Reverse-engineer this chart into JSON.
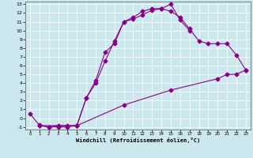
{
  "xlabel": "Windchill (Refroidissement éolien,°C)",
  "bg_color": "#cce8ee",
  "line_color": "#880088",
  "xlim": [
    -0.5,
    23.5
  ],
  "ylim": [
    -1.3,
    13.3
  ],
  "xticks": [
    0,
    1,
    2,
    3,
    4,
    5,
    6,
    7,
    8,
    9,
    10,
    11,
    12,
    13,
    14,
    15,
    16,
    17,
    18,
    19,
    20,
    21,
    22,
    23
  ],
  "yticks": [
    -1,
    0,
    1,
    2,
    3,
    4,
    5,
    6,
    7,
    8,
    9,
    10,
    11,
    12,
    13
  ],
  "line1_x": [
    0,
    1,
    2,
    3,
    4,
    5,
    6,
    7,
    8,
    9,
    10,
    11,
    12,
    13,
    14,
    15,
    16,
    17
  ],
  "line1_y": [
    0.5,
    -0.8,
    -1.0,
    -0.85,
    -0.85,
    -0.85,
    2.3,
    4.0,
    6.5,
    8.8,
    11.0,
    11.5,
    12.2,
    12.5,
    12.5,
    13.0,
    11.2,
    10.0
  ],
  "line2_x": [
    1,
    2,
    3,
    4,
    5,
    6,
    7,
    8,
    9,
    10,
    11,
    12,
    13,
    14,
    15,
    16,
    17,
    18,
    19,
    20,
    21,
    22,
    23
  ],
  "line2_y": [
    -0.85,
    -1.0,
    -1.0,
    -1.0,
    -0.85,
    2.3,
    4.3,
    7.5,
    8.5,
    11.0,
    11.3,
    11.8,
    12.3,
    12.5,
    12.2,
    11.5,
    10.2,
    8.8,
    8.5,
    8.5,
    8.5,
    7.2,
    5.5
  ],
  "line3_x": [
    1,
    5,
    10,
    15,
    20,
    21,
    22,
    23
  ],
  "line3_y": [
    -0.85,
    -0.85,
    1.5,
    3.2,
    4.5,
    5.0,
    5.0,
    5.5
  ]
}
